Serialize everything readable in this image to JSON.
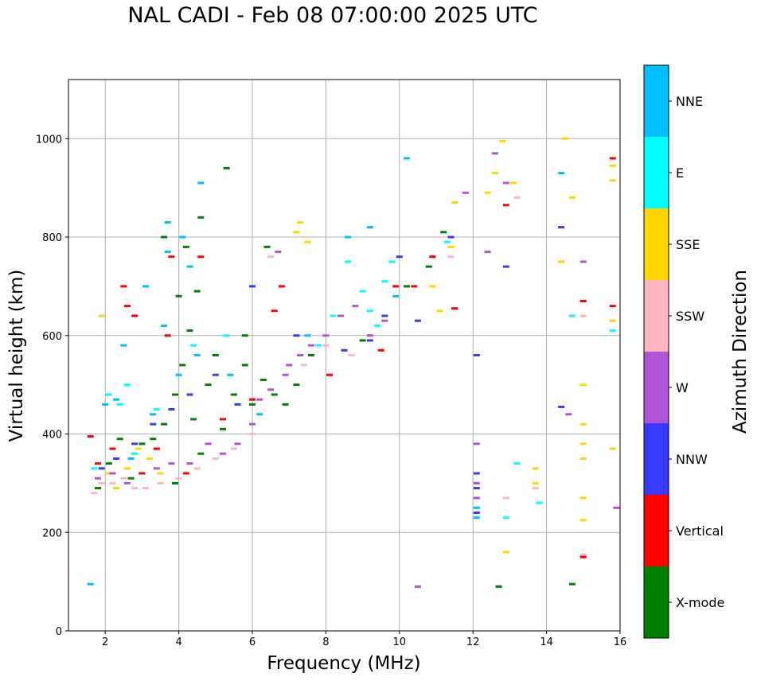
{
  "chart_data": {
    "type": "scatter",
    "title": "NAL CADI - Feb 08 07:00:00 2025 UTC",
    "xlabel": "Frequency (MHz)",
    "ylabel": "Virtual height (km)",
    "xlim": [
      1,
      16
    ],
    "ylim": [
      0,
      1120
    ],
    "xticks": [
      "2",
      "4",
      "6",
      "8",
      "10",
      "12",
      "14",
      "16"
    ],
    "yticks": [
      "0",
      "200",
      "400",
      "600",
      "800",
      "1000"
    ],
    "grid": true,
    "colorbar": {
      "label": "Azimuth Direction",
      "categories": [
        {
          "name": "X-mode",
          "color": "#008000"
        },
        {
          "name": "Vertical",
          "color": "#ff0000"
        },
        {
          "name": "NNW",
          "color": "#3a3aff"
        },
        {
          "name": "W",
          "color": "#b155d6"
        },
        {
          "name": "SSW",
          "color": "#ffb6c1"
        },
        {
          "name": "SSE",
          "color": "#ffd700"
        },
        {
          "name": "E",
          "color": "#00ffff"
        },
        {
          "name": "NNE",
          "color": "#00bfff"
        }
      ]
    },
    "series": [
      {
        "name": "NNE",
        "points": [
          [
            1.6,
            95
          ],
          [
            2.0,
            460
          ],
          [
            2.3,
            470
          ],
          [
            2.5,
            580
          ],
          [
            2.7,
            350
          ],
          [
            3.1,
            700
          ],
          [
            3.3,
            440
          ],
          [
            3.6,
            620
          ],
          [
            3.7,
            770
          ],
          [
            3.7,
            830
          ],
          [
            4.0,
            520
          ],
          [
            4.1,
            800
          ],
          [
            4.3,
            740
          ],
          [
            4.5,
            560
          ],
          [
            4.6,
            910
          ],
          [
            5.4,
            520
          ],
          [
            6.2,
            440
          ],
          [
            7.5,
            600
          ],
          [
            8.6,
            800
          ],
          [
            9.2,
            820
          ],
          [
            9.9,
            680
          ],
          [
            10.2,
            960
          ],
          [
            12.1,
            230
          ],
          [
            12.1,
            250
          ],
          [
            14.4,
            930
          ]
        ]
      },
      {
        "name": "E",
        "points": [
          [
            1.7,
            330
          ],
          [
            2.1,
            480
          ],
          [
            2.4,
            460
          ],
          [
            2.6,
            500
          ],
          [
            2.8,
            360
          ],
          [
            3.4,
            450
          ],
          [
            4.4,
            580
          ],
          [
            5.3,
            600
          ],
          [
            7.3,
            560
          ],
          [
            7.8,
            580
          ],
          [
            8.2,
            640
          ],
          [
            8.6,
            750
          ],
          [
            9.0,
            690
          ],
          [
            9.2,
            650
          ],
          [
            9.4,
            620
          ],
          [
            9.6,
            710
          ],
          [
            9.8,
            750
          ],
          [
            11.3,
            790
          ],
          [
            12.9,
            230
          ],
          [
            13.2,
            340
          ],
          [
            13.8,
            260
          ],
          [
            14.7,
            640
          ],
          [
            15.8,
            610
          ]
        ]
      },
      {
        "name": "SSE",
        "points": [
          [
            1.9,
            640
          ],
          [
            2.1,
            320
          ],
          [
            2.3,
            290
          ],
          [
            2.6,
            330
          ],
          [
            2.9,
            370
          ],
          [
            3.2,
            350
          ],
          [
            3.5,
            320
          ],
          [
            7.2,
            810
          ],
          [
            7.3,
            830
          ],
          [
            7.5,
            790
          ],
          [
            10.9,
            700
          ],
          [
            11.1,
            650
          ],
          [
            11.4,
            780
          ],
          [
            11.5,
            870
          ],
          [
            12.4,
            890
          ],
          [
            12.6,
            930
          ],
          [
            12.7,
            90
          ],
          [
            12.9,
            160
          ],
          [
            13.1,
            910
          ],
          [
            13.7,
            330
          ],
          [
            13.7,
            300
          ],
          [
            14.4,
            750
          ],
          [
            14.5,
            1000
          ],
          [
            14.7,
            880
          ],
          [
            15.0,
            380
          ],
          [
            15.0,
            420
          ],
          [
            15.0,
            500
          ],
          [
            15.0,
            350
          ],
          [
            15.0,
            270
          ],
          [
            15.0,
            225
          ],
          [
            15.8,
            945
          ],
          [
            15.8,
            915
          ],
          [
            15.8,
            630
          ],
          [
            15.8,
            370
          ],
          [
            12.8,
            995
          ]
        ]
      },
      {
        "name": "SSW",
        "points": [
          [
            1.7,
            280
          ],
          [
            1.9,
            300
          ],
          [
            2.2,
            300
          ],
          [
            2.5,
            310
          ],
          [
            2.8,
            290
          ],
          [
            3.1,
            290
          ],
          [
            3.5,
            300
          ],
          [
            4.0,
            310
          ],
          [
            4.5,
            330
          ],
          [
            5.0,
            350
          ],
          [
            5.5,
            370
          ],
          [
            6.0,
            400
          ],
          [
            6.5,
            760
          ],
          [
            7.4,
            540
          ],
          [
            8.0,
            580
          ],
          [
            8.7,
            560
          ],
          [
            11.4,
            760
          ],
          [
            12.9,
            270
          ],
          [
            13.2,
            880
          ],
          [
            13.7,
            290
          ],
          [
            15.0,
            155
          ],
          [
            15.0,
            640
          ]
        ]
      },
      {
        "name": "W",
        "points": [
          [
            1.8,
            310
          ],
          [
            2.2,
            320
          ],
          [
            2.6,
            300
          ],
          [
            3.0,
            320
          ],
          [
            3.4,
            330
          ],
          [
            3.8,
            340
          ],
          [
            4.3,
            340
          ],
          [
            4.8,
            380
          ],
          [
            5.2,
            360
          ],
          [
            5.6,
            380
          ],
          [
            6.0,
            420
          ],
          [
            6.2,
            470
          ],
          [
            6.5,
            490
          ],
          [
            6.7,
            770
          ],
          [
            6.9,
            520
          ],
          [
            7.0,
            540
          ],
          [
            7.3,
            560
          ],
          [
            7.6,
            580
          ],
          [
            8.0,
            600
          ],
          [
            8.4,
            640
          ],
          [
            8.8,
            660
          ],
          [
            9.2,
            600
          ],
          [
            9.6,
            630
          ],
          [
            10.5,
            90
          ],
          [
            10.9,
            760
          ],
          [
            11.8,
            890
          ],
          [
            12.1,
            380
          ],
          [
            12.1,
            300
          ],
          [
            12.1,
            270
          ],
          [
            12.4,
            770
          ],
          [
            12.6,
            970
          ],
          [
            12.9,
            910
          ],
          [
            14.6,
            440
          ],
          [
            15.0,
            750
          ],
          [
            15.9,
            250
          ]
        ]
      },
      {
        "name": "NNW",
        "points": [
          [
            1.9,
            330
          ],
          [
            2.3,
            350
          ],
          [
            2.8,
            380
          ],
          [
            3.3,
            420
          ],
          [
            3.8,
            450
          ],
          [
            4.3,
            480
          ],
          [
            5.0,
            520
          ],
          [
            5.6,
            460
          ],
          [
            6.0,
            700
          ],
          [
            7.2,
            600
          ],
          [
            8.5,
            570
          ],
          [
            9.2,
            590
          ],
          [
            9.6,
            640
          ],
          [
            10.0,
            760
          ],
          [
            10.5,
            630
          ],
          [
            11.4,
            800
          ],
          [
            12.1,
            560
          ],
          [
            12.1,
            320
          ],
          [
            12.1,
            290
          ],
          [
            12.1,
            240
          ],
          [
            12.9,
            740
          ],
          [
            14.4,
            820
          ],
          [
            14.4,
            455
          ]
        ]
      },
      {
        "name": "Vertical",
        "points": [
          [
            1.6,
            395
          ],
          [
            1.8,
            340
          ],
          [
            2.2,
            370
          ],
          [
            2.5,
            700
          ],
          [
            2.6,
            660
          ],
          [
            2.8,
            640
          ],
          [
            3.0,
            320
          ],
          [
            3.4,
            370
          ],
          [
            3.7,
            600
          ],
          [
            3.8,
            760
          ],
          [
            4.2,
            320
          ],
          [
            4.6,
            760
          ],
          [
            5.2,
            430
          ],
          [
            6.0,
            470
          ],
          [
            6.6,
            650
          ],
          [
            6.8,
            700
          ],
          [
            8.1,
            520
          ],
          [
            9.5,
            570
          ],
          [
            9.9,
            700
          ],
          [
            10.4,
            700
          ],
          [
            10.9,
            760
          ],
          [
            11.5,
            655
          ],
          [
            12.9,
            865
          ],
          [
            15.0,
            150
          ],
          [
            15.0,
            670
          ],
          [
            15.8,
            960
          ],
          [
            15.8,
            660
          ]
        ]
      },
      {
        "name": "X-mode",
        "points": [
          [
            1.8,
            290
          ],
          [
            2.1,
            340
          ],
          [
            2.4,
            390
          ],
          [
            2.7,
            310
          ],
          [
            3.0,
            380
          ],
          [
            3.3,
            390
          ],
          [
            3.6,
            420
          ],
          [
            3.9,
            480
          ],
          [
            4.1,
            540
          ],
          [
            4.2,
            780
          ],
          [
            4.3,
            610
          ],
          [
            4.4,
            430
          ],
          [
            4.5,
            690
          ],
          [
            4.6,
            840
          ],
          [
            4.8,
            500
          ],
          [
            5.0,
            560
          ],
          [
            5.2,
            410
          ],
          [
            5.3,
            940
          ],
          [
            5.5,
            480
          ],
          [
            5.8,
            540
          ],
          [
            6.0,
            460
          ],
          [
            6.3,
            510
          ],
          [
            6.6,
            480
          ],
          [
            6.9,
            460
          ],
          [
            7.2,
            500
          ],
          [
            7.6,
            560
          ],
          [
            9.0,
            590
          ],
          [
            10.2,
            700
          ],
          [
            10.8,
            740
          ],
          [
            11.2,
            810
          ],
          [
            12.7,
            90
          ],
          [
            14.7,
            95
          ],
          [
            4.0,
            680
          ],
          [
            3.6,
            800
          ],
          [
            5.8,
            600
          ],
          [
            6.4,
            780
          ],
          [
            3.9,
            300
          ],
          [
            4.6,
            360
          ]
        ]
      }
    ]
  }
}
